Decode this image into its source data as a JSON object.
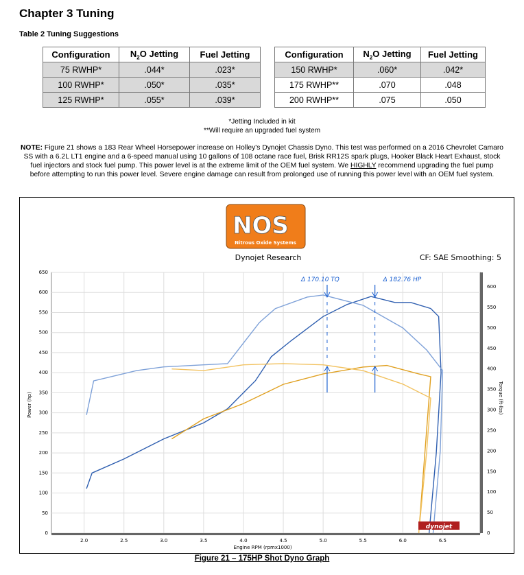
{
  "heading": "Chapter 3 Tuning",
  "table_title": "Table 2 Tuning Suggestions",
  "table": {
    "headers": [
      "Configuration",
      "N2O Jetting",
      "Fuel Jetting"
    ],
    "left": [
      [
        "75 RWHP*",
        ".044*",
        ".023*"
      ],
      [
        "100 RWHP*",
        ".050*",
        ".035*"
      ],
      [
        "125 RWHP*",
        ".055*",
        ".039*"
      ]
    ],
    "right": [
      [
        "150 RWHP*",
        ".060*",
        ".042*"
      ],
      [
        "175 RWHP**",
        ".070",
        ".048"
      ],
      [
        "200 RWHP**",
        ".075",
        ".050"
      ]
    ]
  },
  "footnotes": [
    "*Jetting Included in kit",
    "**Will require an upgraded fuel system"
  ],
  "note": {
    "label": "NOTE:",
    "text1": " Figure 21 shows a 183 Rear Wheel Horsepower increase on Holley's Dynojet Chassis Dyno. This test was performed on a 2016 Chevrolet Camaro SS with a 6.2L LT1 engine and a 6-speed manual using 10 gallons of 108 octane race fuel, Brisk RR12S spark plugs, Hooker Black Heart Exhaust, stock fuel injectors and stock fuel pump. This power level is at the extreme limit of the OEM fuel system. We ",
    "emph": "HIGHLY",
    "text2": " recommend upgrading the fuel pump before attempting to run this power level. Severe engine damage can result from prolonged use of running this power level with an OEM fuel system."
  },
  "logo": {
    "text": "NOS",
    "subtitle": "Nitrous Oxide Systems"
  },
  "chart_header": {
    "left": "Dynojet Research",
    "right": "CF: SAE Smoothing: 5"
  },
  "dynojet_logo": "dynojet",
  "caption": "Figure 21 – 175HP Shot Dyno Graph",
  "chart_data": {
    "type": "line",
    "xlabel": "Engine RPM (rpmx1000)",
    "ylabel": "Power (hp)",
    "y2label": "Torque (ft-lbs)",
    "xlim": [
      1.59,
      6.97
    ],
    "ylim": [
      0,
      650
    ],
    "y2lim": [
      0,
      650
    ],
    "xticks": [
      "2.0",
      "2.5",
      "3.0",
      "3.5",
      "4.0",
      "4.5",
      "5.0",
      "5.5",
      "6.0",
      "6.5"
    ],
    "yticks": [
      "0",
      "50",
      "100",
      "150",
      "200",
      "250",
      "300",
      "350",
      "400",
      "450",
      "500",
      "550",
      "600",
      "650"
    ],
    "y2ticks": [
      "0",
      "50",
      "100",
      "150",
      "200",
      "250",
      "300",
      "350",
      "400",
      "450",
      "500",
      "550",
      "600"
    ],
    "grid": true,
    "series": [
      {
        "name": "Power (nitrous)",
        "axis": "left",
        "color": "#2f5fb0",
        "x": [
          2.03,
          2.1,
          2.5,
          3.0,
          3.5,
          3.8,
          4.0,
          4.15,
          4.35,
          4.6,
          5.0,
          5.3,
          5.6,
          5.9,
          6.1,
          6.35,
          6.45,
          6.48,
          6.42,
          6.33
        ],
        "y": [
          111,
          150,
          185,
          235,
          275,
          310,
          350,
          380,
          440,
          480,
          540,
          570,
          590,
          575,
          575,
          560,
          540,
          400,
          200,
          0
        ]
      },
      {
        "name": "Torque (nitrous)",
        "axis": "right",
        "color": "#7ea1d8",
        "x": [
          2.03,
          2.12,
          2.66,
          3.0,
          3.5,
          3.8,
          4.0,
          4.2,
          4.4,
          4.8,
          5.0,
          5.5,
          6.0,
          6.3,
          6.5,
          6.47,
          6.38
        ],
        "y": [
          288,
          371,
          396,
          405,
          410,
          413,
          463,
          513,
          547,
          575,
          580,
          555,
          500,
          446,
          396,
          200,
          0
        ]
      },
      {
        "name": "Power (baseline)",
        "axis": "left",
        "color": "#e0a020",
        "x": [
          3.1,
          3.5,
          4.0,
          4.5,
          5.0,
          5.5,
          5.8,
          6.2,
          6.35,
          6.2
        ],
        "y": [
          235,
          285,
          323,
          371,
          397,
          414,
          418,
          397,
          390,
          0
        ]
      },
      {
        "name": "Torque (baseline)",
        "axis": "right",
        "color": "#f2c260",
        "x": [
          3.1,
          3.5,
          4.0,
          4.5,
          5.0,
          5.5,
          6.0,
          6.35,
          6.3,
          6.2
        ],
        "y": [
          400,
          396,
          410,
          413,
          410,
          396,
          363,
          329,
          200,
          0
        ]
      }
    ],
    "annotations": [
      {
        "text": "Δ 170.10 TQ",
        "x": 5.05
      },
      {
        "text": "Δ 182.76 HP",
        "x": 5.65
      }
    ]
  }
}
